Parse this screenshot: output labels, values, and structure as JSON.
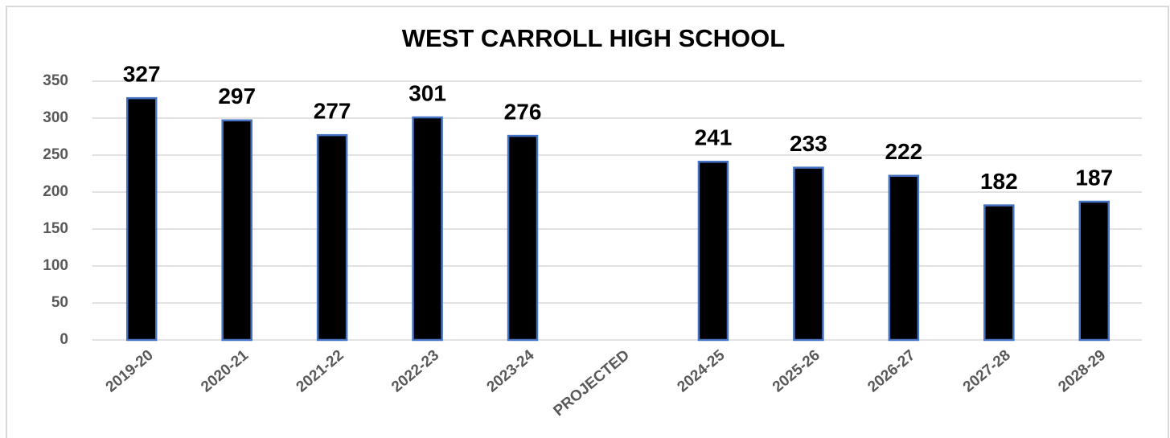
{
  "chart_data": {
    "type": "bar",
    "title": "WEST CARROLL HIGH SCHOOL",
    "categories": [
      "2019-20",
      "2020-21",
      "2021-22",
      "2022-23",
      "2023-24",
      "PROJECTED",
      "2024-25",
      "2025-26",
      "2026-27",
      "2027-28",
      "2028-29"
    ],
    "values": [
      327,
      297,
      277,
      301,
      276,
      null,
      241,
      233,
      222,
      182,
      187
    ],
    "color": "#000000",
    "edge_color": "#4472c4",
    "ylim": [
      0,
      350
    ],
    "yticks": [
      0,
      50,
      100,
      150,
      200,
      250,
      300,
      350
    ],
    "grid": true
  }
}
